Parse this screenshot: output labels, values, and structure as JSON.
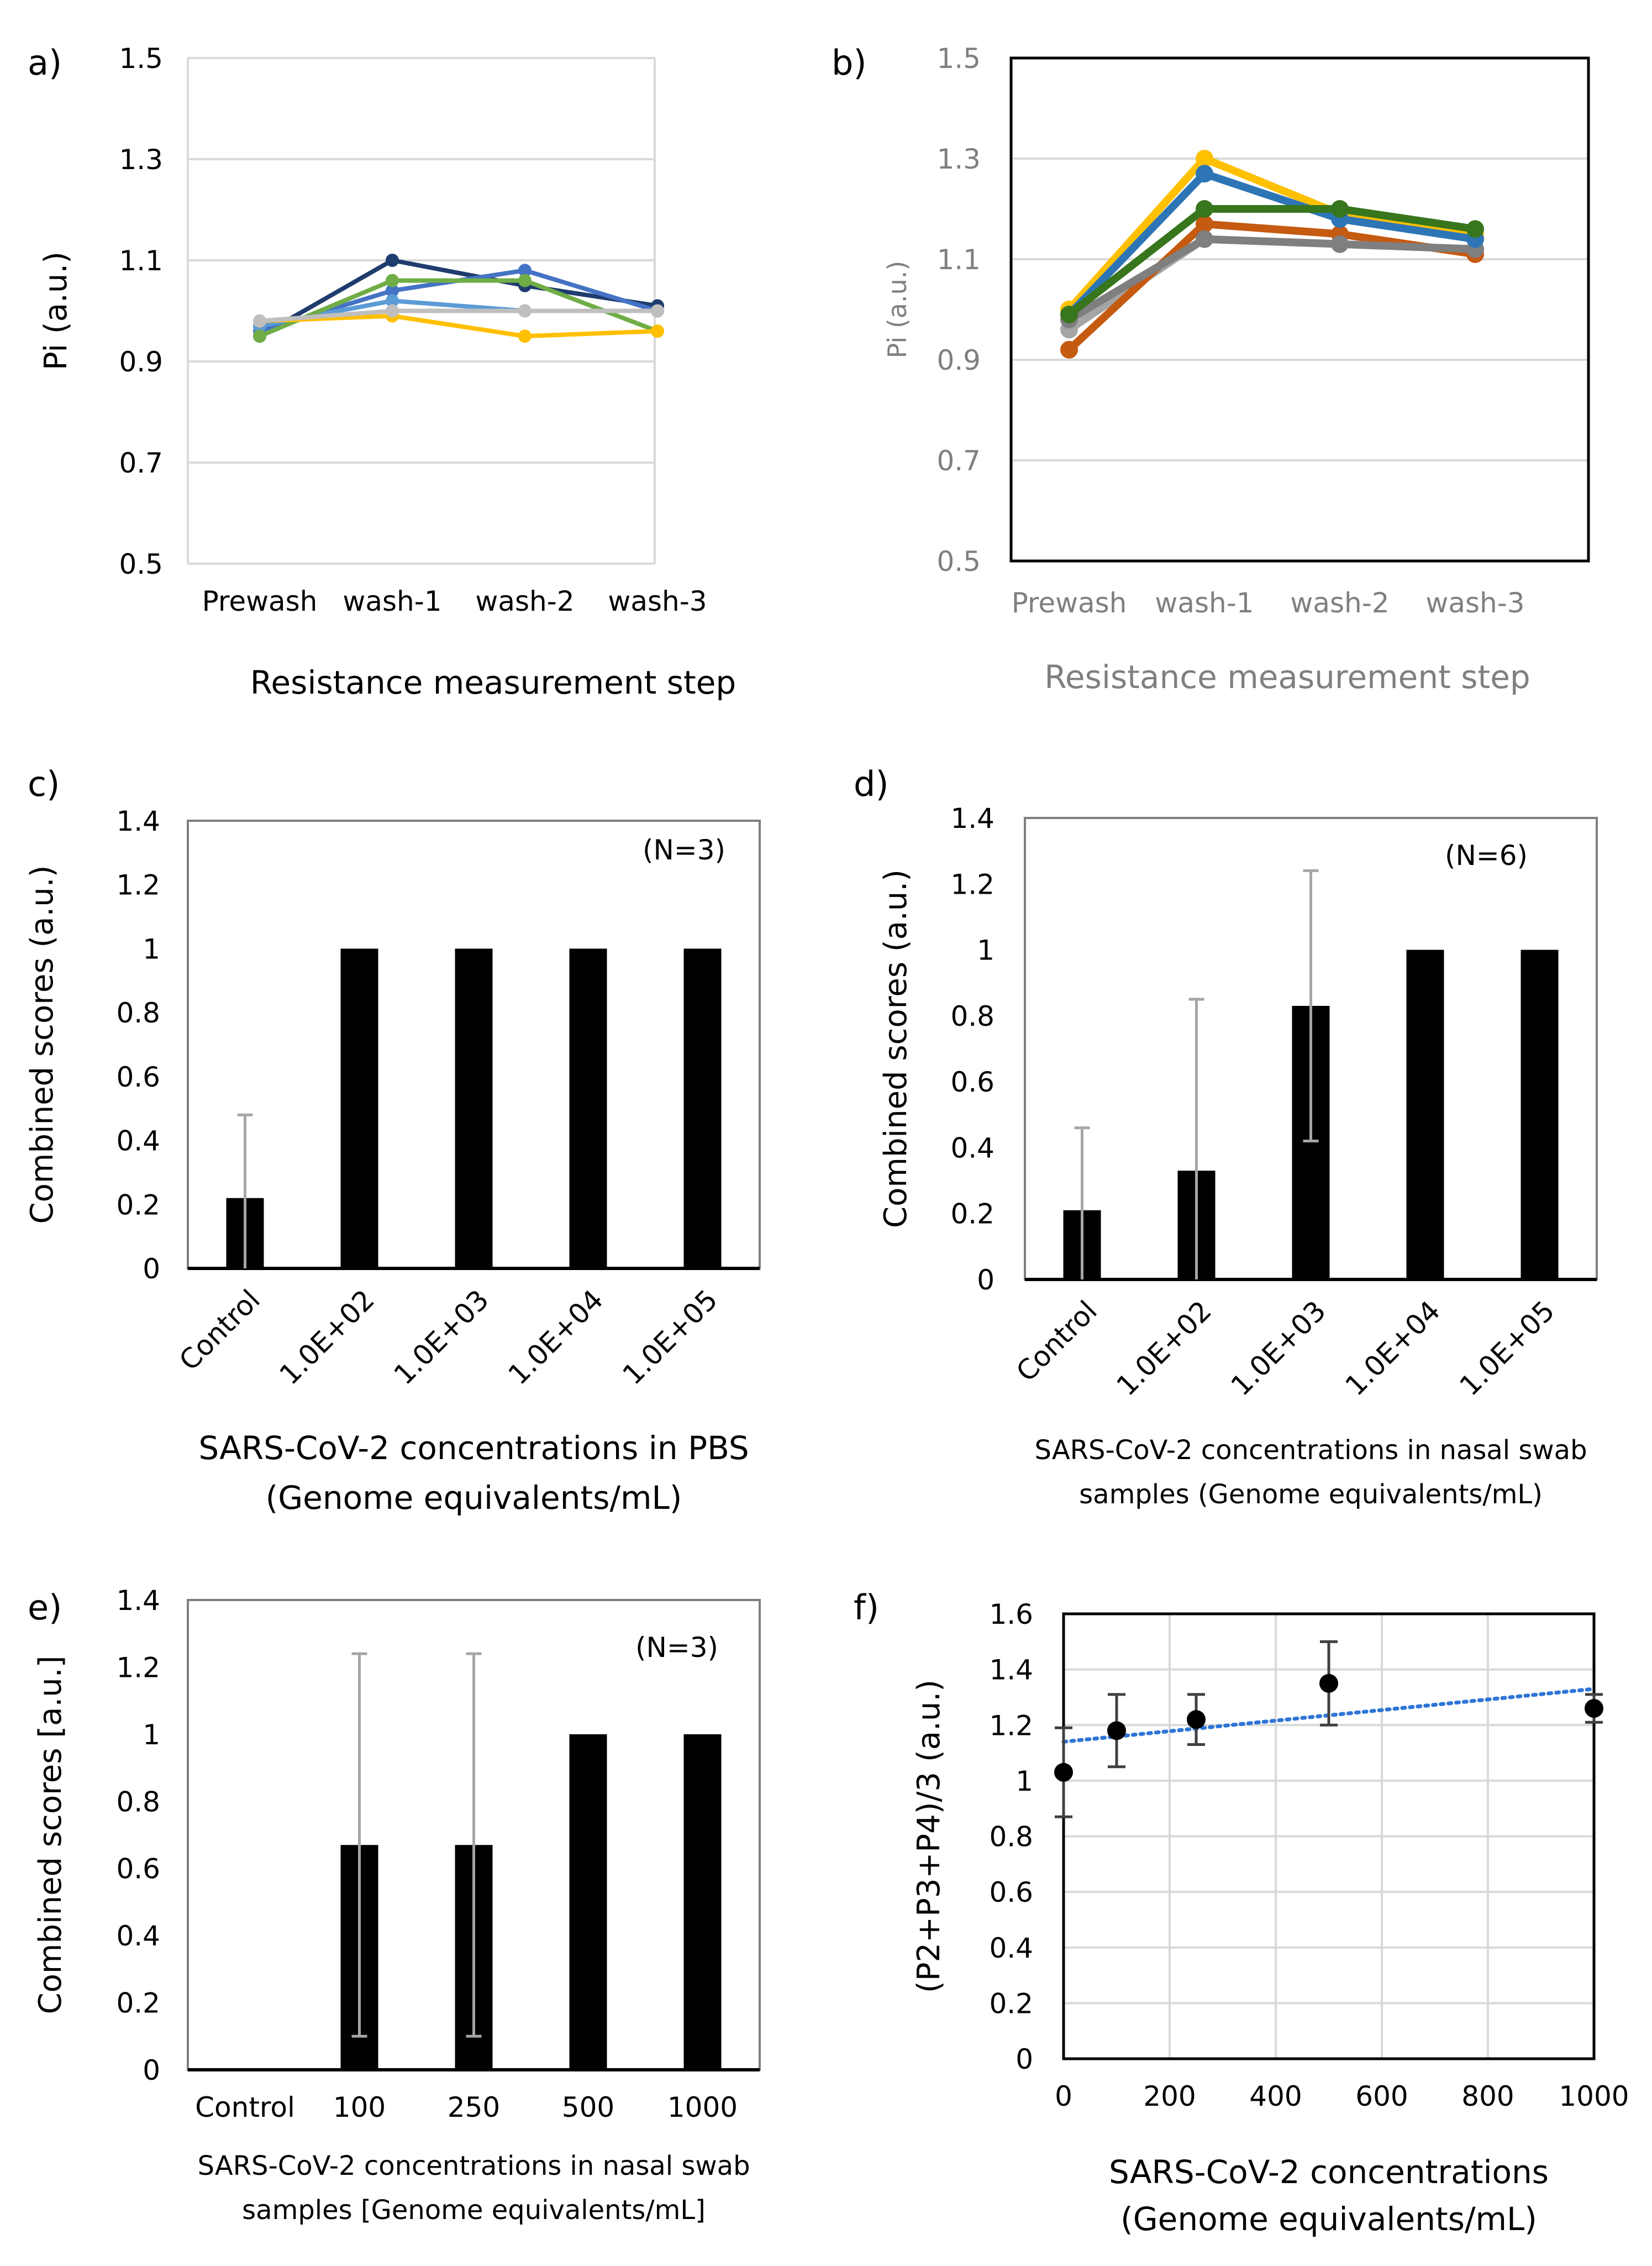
{
  "panels": [
    {
      "id": "a",
      "letter": "a)",
      "type": "line",
      "categories": [
        "Prewash",
        "wash-1",
        "wash-2",
        "wash-3"
      ],
      "ylabel": "Pi (a.u.)",
      "xlabel": [
        "Resistance measurement step"
      ],
      "ylim": [
        0.5,
        1.5
      ],
      "yticks": [
        0.5,
        0.7,
        0.9,
        1.1,
        1.3,
        1.5
      ],
      "tick_labels": [
        "0.5",
        "0.7",
        "0.9",
        "1.1",
        "1.3",
        "1.5"
      ],
      "grid": "horizontal",
      "series": [
        {
          "name": "s1",
          "color": "#1f3c6e",
          "values": [
            0.95,
            1.1,
            1.05,
            1.01
          ]
        },
        {
          "name": "s2",
          "color": "#4472c4",
          "values": [
            0.96,
            1.04,
            1.08,
            1.0
          ]
        },
        {
          "name": "s3",
          "color": "#5b9bd5",
          "values": [
            0.97,
            1.02,
            1.0,
            1.0
          ]
        },
        {
          "name": "s4",
          "color": "#70ad47",
          "values": [
            0.95,
            1.06,
            1.06,
            0.96
          ]
        },
        {
          "name": "s5",
          "color": "#ffc000",
          "values": [
            0.98,
            0.99,
            0.95,
            0.96
          ]
        },
        {
          "name": "s6",
          "color": "#bfbfbf",
          "values": [
            0.98,
            1.0,
            1.0,
            1.0
          ]
        }
      ]
    },
    {
      "id": "b",
      "letter": "b)",
      "type": "line",
      "categories": [
        "Prewash",
        "wash-1",
        "wash-2",
        "wash-3"
      ],
      "ylabel": "Pi (a.u.)",
      "xlabel": [
        "Resistance measurement step"
      ],
      "ylim": [
        0.5,
        1.5
      ],
      "yticks": [
        0.5,
        0.7,
        0.9,
        1.1,
        1.3,
        1.5
      ],
      "tick_labels": [
        "0.5",
        "0.7",
        "0.9",
        "1.1",
        "1.3",
        "1.5"
      ],
      "grid": "horizontal",
      "series": [
        {
          "name": "s1",
          "color": "#a5a5a5",
          "values": [
            0.96,
            1.14,
            1.13,
            1.12
          ]
        },
        {
          "name": "s2",
          "color": "#c55a11",
          "values": [
            0.92,
            1.17,
            1.15,
            1.11
          ]
        },
        {
          "name": "s3",
          "color": "#7f7f7f",
          "values": [
            0.98,
            1.14,
            1.13,
            1.12
          ]
        },
        {
          "name": "s4",
          "color": "#ffc000",
          "values": [
            1.0,
            1.3,
            1.19,
            1.15
          ]
        },
        {
          "name": "s5",
          "color": "#2e75b6",
          "values": [
            0.99,
            1.27,
            1.18,
            1.14
          ]
        },
        {
          "name": "s6",
          "color": "#38761d",
          "values": [
            0.99,
            1.2,
            1.2,
            1.16
          ]
        }
      ]
    },
    {
      "id": "c",
      "letter": "c)",
      "type": "bar",
      "categories": [
        "Control",
        "1.0E+02",
        "1.0E+03",
        "1.0E+04",
        "1.0E+05"
      ],
      "values": [
        0.22,
        1.0,
        1.0,
        1.0,
        1.0
      ],
      "errors": [
        0.26,
        0,
        0,
        0,
        0
      ],
      "ylabel": "Combined scores (a.u.)",
      "xlabel": [
        "SARS-CoV-2 concentrations in PBS",
        "(Genome equivalents/mL)"
      ],
      "ylim": [
        0,
        1.4
      ],
      "yticks": [
        0,
        0.2,
        0.4,
        0.6,
        0.8,
        1.0,
        1.2,
        1.4
      ],
      "tick_labels": [
        "0",
        "0.2",
        "0.4",
        "0.6",
        "0.8",
        "1",
        "1.2",
        "1.4"
      ],
      "annotation": "(N=3)",
      "grid": "none"
    },
    {
      "id": "d",
      "letter": "d)",
      "type": "bar",
      "categories": [
        "Control",
        "1.0E+02",
        "1.0E+03",
        "1.0E+04",
        "1.0E+05"
      ],
      "values": [
        0.21,
        0.33,
        0.83,
        1.0,
        1.0
      ],
      "errors": [
        0.25,
        0.52,
        0.41,
        0,
        0
      ],
      "ylabel": "Combined scores (a.u.)",
      "xlabel": [
        "SARS-CoV-2 concentrations in nasal swab",
        "samples (Genome equivalents/mL)"
      ],
      "ylim": [
        0,
        1.4
      ],
      "yticks": [
        0,
        0.2,
        0.4,
        0.6,
        0.8,
        1.0,
        1.2,
        1.4
      ],
      "tick_labels": [
        "0",
        "0.2",
        "0.4",
        "0.6",
        "0.8",
        "1",
        "1.2",
        "1.4"
      ],
      "annotation": "(N=6)",
      "grid": "none"
    },
    {
      "id": "e",
      "letter": "e)",
      "type": "bar",
      "categories": [
        "Control",
        "100",
        "250",
        "500",
        "1000"
      ],
      "values": [
        0,
        0.67,
        0.67,
        1.0,
        1.0
      ],
      "errors": [
        0,
        0.57,
        0.57,
        0,
        0
      ],
      "ylabel": "Combined scores [a.u.]",
      "xlabel": [
        "SARS-CoV-2 concentrations in nasal swab",
        "samples [Genome equivalents/mL]"
      ],
      "ylim": [
        0,
        1.4
      ],
      "yticks": [
        0,
        0.2,
        0.4,
        0.6,
        0.8,
        1.0,
        1.2,
        1.4
      ],
      "tick_labels": [
        "0",
        "0.2",
        "0.4",
        "0.6",
        "0.8",
        "1",
        "1.2",
        "1.4"
      ],
      "annotation": "(N=3)",
      "grid": "none"
    },
    {
      "id": "f",
      "letter": "f)",
      "type": "scatter",
      "x": [
        0,
        100,
        250,
        500,
        1000
      ],
      "y": [
        1.03,
        1.18,
        1.22,
        1.35,
        1.26
      ],
      "errors": [
        0.16,
        0.13,
        0.09,
        0.15,
        0.05
      ],
      "trend": {
        "x": [
          0,
          1000
        ],
        "y": [
          1.14,
          1.33
        ]
      },
      "ylabel": "(P2+P3+P4)/3 (a.u.)",
      "xlabel": [
        "SARS-CoV-2 concentrations",
        "(Genome equivalents/mL)"
      ],
      "xlim": [
        0,
        1000
      ],
      "ylim": [
        0,
        1.6
      ],
      "xticks": [
        0,
        200,
        400,
        600,
        800,
        1000
      ],
      "xtick_labels": [
        "0",
        "200",
        "400",
        "600",
        "800",
        "1000"
      ],
      "yticks": [
        0,
        0.2,
        0.4,
        0.6,
        0.8,
        1.0,
        1.2,
        1.4,
        1.6
      ],
      "tick_labels": [
        "0",
        "0.2",
        "0.4",
        "0.6",
        "0.8",
        "1",
        "1.2",
        "1.4",
        "1.6"
      ],
      "grid": "both"
    }
  ]
}
